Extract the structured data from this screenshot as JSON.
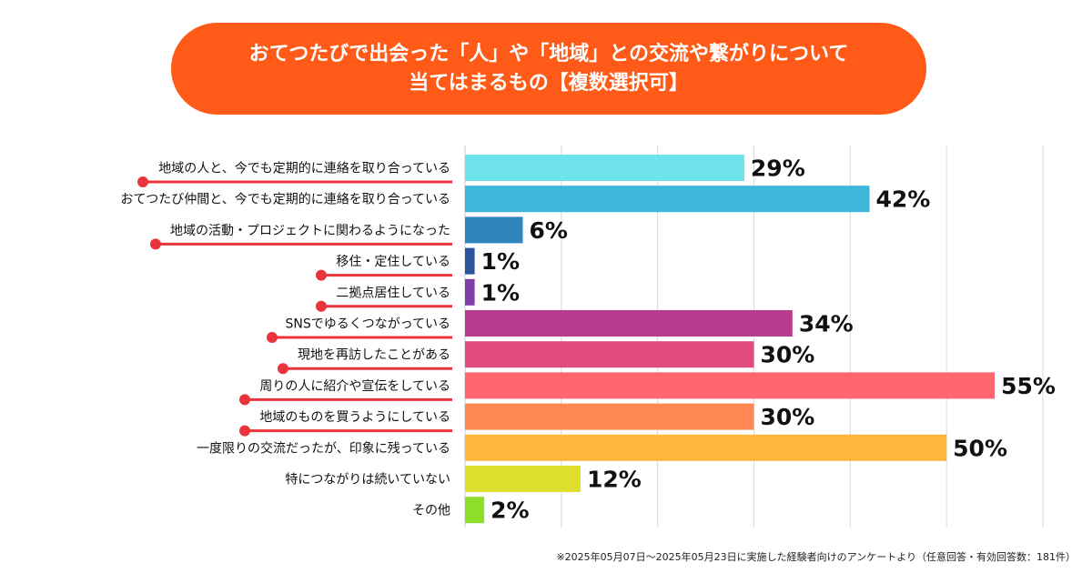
{
  "title": {
    "line1": "おてつたびで出会った「人」や「地域」との交流や繋がりについて",
    "line2": "当てはまるもの【複数選択可】"
  },
  "chart_data": {
    "type": "bar",
    "orientation": "horizontal",
    "categories": [
      "地域の人と、今でも定期的に連絡を取り合っている",
      "おてつたび仲間と、今でも定期的に連絡を取り合っている",
      "地域の活動・プロジェクトに関わるようになった",
      "移住・定住している",
      "二拠点居住している",
      "SNSでゆるくつながっている",
      "現地を再訪したことがある",
      "周りの人に紹介や宣伝をしている",
      "地域のものを買うようにしている",
      "一度限りの交流だったが、印象に残っている",
      "特につながりは続いていない",
      "その他"
    ],
    "values": [
      29,
      42,
      6,
      1,
      1,
      34,
      30,
      55,
      30,
      50,
      12,
      2
    ],
    "value_labels": [
      "29%",
      "42%",
      "6%",
      "1%",
      "1%",
      "34%",
      "30%",
      "55%",
      "30%",
      "50%",
      "12%",
      "2%"
    ],
    "bar_colors": [
      "#6ee3ec",
      "#3cb6dc",
      "#2f86bf",
      "#2e54a0",
      "#7f3ea6",
      "#b73b8e",
      "#e34a7f",
      "#ff6670",
      "#ff8854",
      "#ffb63a",
      "#dfe02b",
      "#8fde2a"
    ],
    "xlim": [
      0,
      60
    ],
    "grid": true,
    "highlighted_categories": [
      0,
      2,
      3,
      4,
      5,
      6,
      7,
      8
    ],
    "highlight_color": "#e8343a"
  },
  "footnote": "※2025年05月07日〜2025年05月23日に実施した経験者向けのアンケートより（任意回答・有効回答数：181件）"
}
